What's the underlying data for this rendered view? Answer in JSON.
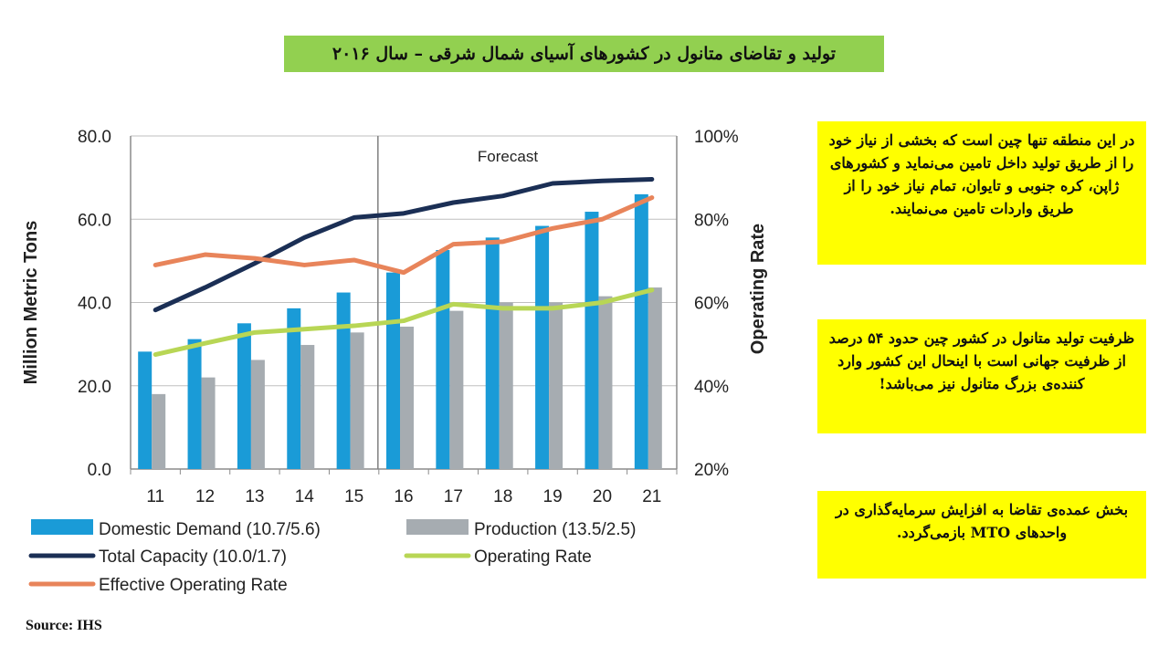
{
  "title": "تولید و تقاضای متانول در کشورهای آسیای شمال شرقی – سال ۲۰۱۶",
  "chart_data": {
    "type": "bar",
    "categories": [
      "11",
      "12",
      "13",
      "14",
      "15",
      "16",
      "17",
      "18",
      "19",
      "20",
      "21"
    ],
    "forecast_label": "Forecast",
    "forecast_from_category": "16",
    "ylabel_left": "Million Metric Tons",
    "ylabel_right": "Operating Rate",
    "ylim_left": [
      0,
      80
    ],
    "yticks_left": [
      "0.0",
      "20.0",
      "40.0",
      "60.0",
      "80.0"
    ],
    "ylim_right": [
      20,
      100
    ],
    "yticks_right": [
      "20%",
      "40%",
      "60%",
      "80%",
      "100%"
    ],
    "bar_series": [
      {
        "name": "Domestic Demand (10.7/5.6)",
        "color": "#1a9bd7",
        "values": [
          28.2,
          31.2,
          35.0,
          38.6,
          42.4,
          47.2,
          52.6,
          55.6,
          58.4,
          61.8,
          66.0
        ]
      },
      {
        "name": "Production (13.5/2.5)",
        "color": "#a6acb1",
        "values": [
          18.0,
          22.0,
          26.2,
          29.8,
          32.8,
          34.2,
          38.0,
          40.0,
          40.0,
          41.5,
          43.6
        ]
      }
    ],
    "line_series": [
      {
        "name": "Total Capacity (10.0/1.7)",
        "color": "#1b2f55",
        "axis": "left",
        "values": [
          38.2,
          43.6,
          49.4,
          55.6,
          60.4,
          61.4,
          64.0,
          65.6,
          68.6,
          69.2,
          69.6
        ]
      },
      {
        "name": "Operating Rate",
        "color": "#b8d655",
        "axis": "right",
        "values": [
          47.5,
          50.2,
          52.8,
          53.6,
          54.4,
          55.6,
          59.6,
          58.6,
          58.6,
          60.0,
          63.0
        ]
      },
      {
        "name": "Effective Operating Rate",
        "color": "#e8845a",
        "axis": "right",
        "values": [
          69.0,
          71.5,
          70.6,
          69.0,
          70.2,
          67.2,
          74.0,
          74.6,
          77.8,
          80.0,
          85.2
        ]
      }
    ],
    "legend": [
      {
        "name": "Domestic Demand (10.7/5.6)",
        "kind": "bar",
        "color": "#1a9bd7"
      },
      {
        "name": "Production (13.5/2.5)",
        "kind": "bar",
        "color": "#a6acb1"
      },
      {
        "name": "Total Capacity (10.0/1.7)",
        "kind": "line",
        "color": "#1b2f55"
      },
      {
        "name": "Operating Rate",
        "kind": "line",
        "color": "#b8d655"
      },
      {
        "name": "Effective Operating Rate",
        "kind": "line",
        "color": "#e8845a"
      }
    ],
    "grid": true,
    "legend_position": "bottom"
  },
  "notes": [
    "در این منطقه تنها چین است که بخشی از نیاز خود را از طریق تولید داخل تامین می‌نماید و کشورهای ژاپن، کره جنوبی و تایوان، تمام نیاز خود را از طریق واردات تامین می‌نمایند.",
    "ظرفیت تولید متانول در کشور چین حدود ۵۴ درصد از ظرفیت جهانی است با اینحال این کشور وارد کننده‌ی بزرگ متانول نیز می‌باشد!",
    "بخش عمده‌ی تقاضا به افزایش سرمایه‌گذاری در واحدهای MTO بازمی‌گردد."
  ],
  "note_color": "#ffff00",
  "title_color": "#92d050",
  "source": "Source: IHS"
}
